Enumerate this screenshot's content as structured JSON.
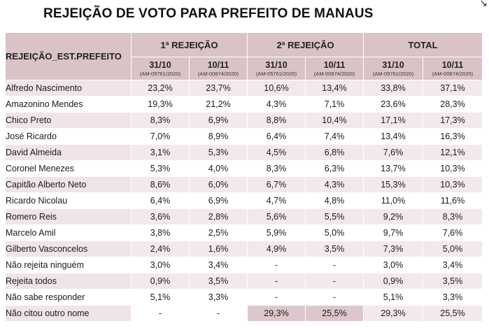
{
  "title": "REJEIÇÃO DE VOTO PARA PREFEITO DE MANAUS",
  "corner_glyph": "↘",
  "header": {
    "row_label": "REJEIÇÃO_EST.PREFEITO",
    "groups": [
      "1ª REJEIÇÃO",
      "2ª REJEIÇÃO",
      "TOTAL"
    ],
    "dates": [
      {
        "date": "31/10",
        "code": "(AM-05761/2020)"
      },
      {
        "date": "10/11",
        "code": "(AM-00874/2020)"
      },
      {
        "date": "31/10",
        "code": "(AM-05761/2020)"
      },
      {
        "date": "10/11",
        "code": "(AM-00874/2020)"
      },
      {
        "date": "31/10",
        "code": "(AM-05761/2020)"
      },
      {
        "date": "10/11",
        "code": "(AM-00874/2020)"
      }
    ]
  },
  "rows": [
    {
      "name": "Alfredo Nascimento",
      "values": [
        "23,2%",
        "23,7%",
        "10,6%",
        "13,4%",
        "33,8%",
        "37,1%"
      ]
    },
    {
      "name": "Amazonino Mendes",
      "values": [
        "19,3%",
        "21,2%",
        "4,3%",
        "7,1%",
        "23,6%",
        "28,3%"
      ]
    },
    {
      "name": "Chico Preto",
      "values": [
        "8,3%",
        "6,9%",
        "8,8%",
        "10,4%",
        "17,1%",
        "17,3%"
      ]
    },
    {
      "name": "José Ricardo",
      "values": [
        "7,0%",
        "8,9%",
        "6,4%",
        "7,4%",
        "13,4%",
        "16,3%"
      ]
    },
    {
      "name": "David Almeida",
      "values": [
        "3,1%",
        "5,3%",
        "4,5%",
        "6,8%",
        "7,6%",
        "12,1%"
      ]
    },
    {
      "name": "Coronel Menezes",
      "values": [
        "5,3%",
        "4,0%",
        "8,3%",
        "6,3%",
        "13,7%",
        "10,3%"
      ]
    },
    {
      "name": "Capitão Alberto Neto",
      "values": [
        "8,6%",
        "6,0%",
        "6,7%",
        "4,3%",
        "15,3%",
        "10,3%"
      ]
    },
    {
      "name": "Ricardo Nicolau",
      "values": [
        "6,4%",
        "6,9%",
        "4,7%",
        "4,8%",
        "11,0%",
        "11,6%"
      ]
    },
    {
      "name": "Romero Reis",
      "values": [
        "3,6%",
        "2,8%",
        "5,6%",
        "5,5%",
        "9,2%",
        "8,3%"
      ]
    },
    {
      "name": "Marcelo Amil",
      "values": [
        "3,8%",
        "2,5%",
        "5,9%",
        "5,0%",
        "9,7%",
        "7,6%"
      ]
    },
    {
      "name": "Gilberto Vasconcelos",
      "values": [
        "2,4%",
        "1,6%",
        "4,9%",
        "3,5%",
        "7,3%",
        "5,0%"
      ]
    },
    {
      "name": "Não rejeita ninguém",
      "values": [
        "3,0%",
        "3,4%",
        "-",
        "-",
        "3,0%",
        "3,4%"
      ]
    },
    {
      "name": "Rejeita todos",
      "values": [
        "0,9%",
        "3,5%",
        "-",
        "-",
        "0,9%",
        "3,5%"
      ]
    },
    {
      "name": "Não sabe responder",
      "values": [
        "5,1%",
        "3,3%",
        "-",
        "-",
        "5,1%",
        "3,3%"
      ]
    },
    {
      "name": "Não citou outro nome",
      "values": [
        "-",
        "-",
        "29,3%",
        "25,5%",
        "29,3%",
        "25,5%"
      ]
    }
  ]
}
